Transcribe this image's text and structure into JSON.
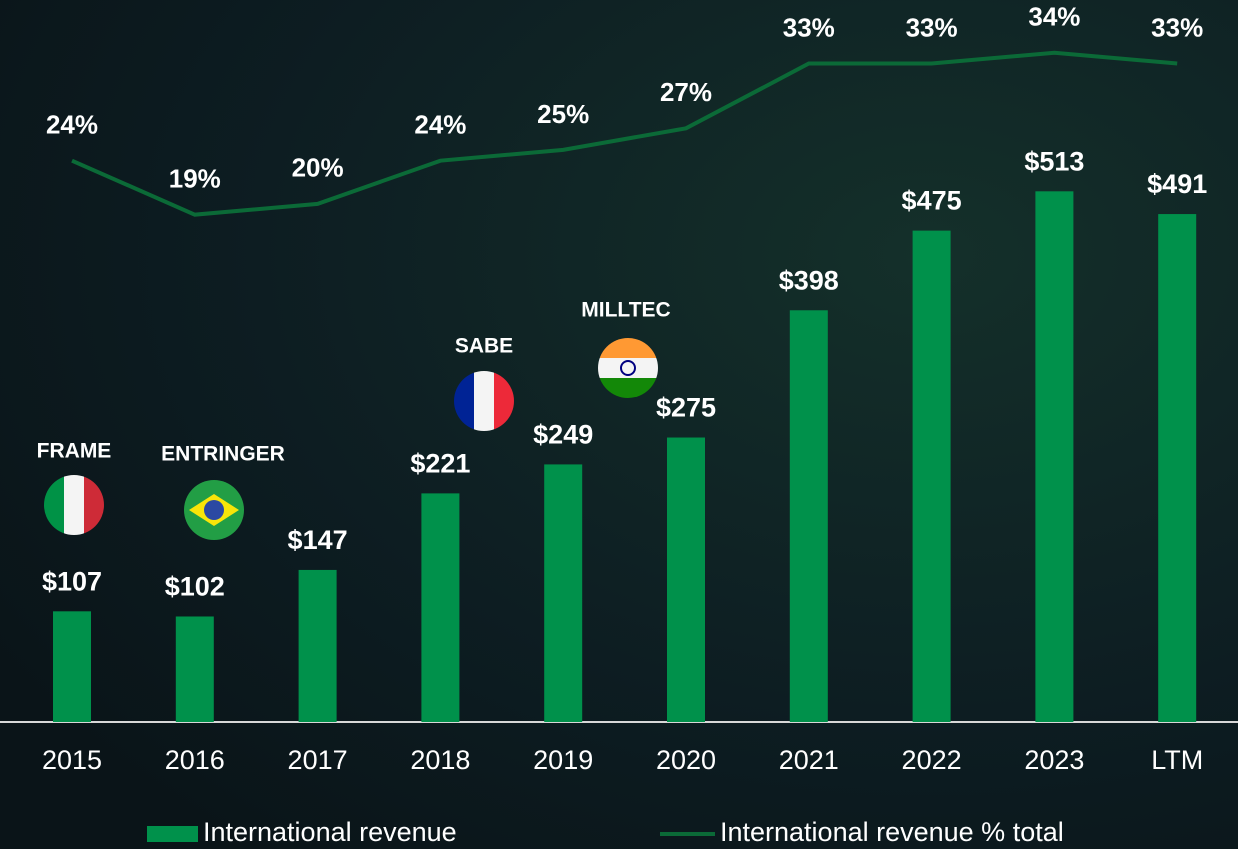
{
  "chart_data": {
    "type": "bar",
    "categories": [
      "2015",
      "2016",
      "2017",
      "2018",
      "2019",
      "2020",
      "2021",
      "2022",
      "2023",
      "LTM"
    ],
    "series": [
      {
        "name": "International revenue",
        "type": "bar",
        "color": "#00914b",
        "values": [
          107,
          102,
          147,
          221,
          249,
          275,
          398,
          475,
          513,
          491
        ],
        "value_labels": [
          "$107",
          "$102",
          "$147",
          "$221",
          "$249",
          "$275",
          "$398",
          "$475",
          "$513",
          "$491"
        ]
      },
      {
        "name": "International revenue % total",
        "type": "line",
        "axis": "y2",
        "color": "#0b6a37",
        "values": [
          24,
          19,
          20,
          24,
          25,
          27,
          33,
          33,
          34,
          33
        ],
        "value_labels": [
          "24%",
          "19%",
          "20%",
          "24%",
          "25%",
          "27%",
          "33%",
          "33%",
          "34%",
          "33%"
        ]
      }
    ],
    "ylim": [
      0,
      696
    ],
    "y2lim": [
      -28,
      38.7
    ],
    "annotations": [
      "FRAME",
      "ENTRINGER",
      "SABE",
      "MILLTEC"
    ],
    "legend": "bottom"
  }
}
